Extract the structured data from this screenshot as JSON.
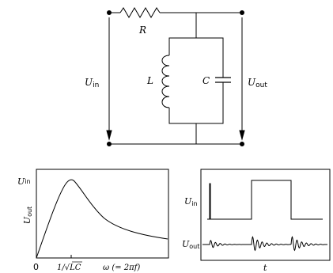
{
  "circuit": {
    "r_label": "R",
    "l_label": "L",
    "c_label": "C",
    "uin_main": "U",
    "uin_sub": "in",
    "uout_main": "U",
    "uout_sub": "out"
  },
  "left_plot": {
    "y_top_label_main": "U",
    "y_top_label_sub": "in",
    "y_label_main": "U",
    "y_label_sub": "out",
    "origin_label": "0",
    "resonance_tick_label": "1/√LC",
    "x_axis_label": "ω (= 2πf)"
  },
  "right_plot": {
    "uin_main": "U",
    "uin_sub": "in",
    "uout_main": "U",
    "uout_sub": "out",
    "x_axis_label": "t"
  },
  "colors": {
    "ink": "#000000",
    "background": "#ffffff"
  }
}
